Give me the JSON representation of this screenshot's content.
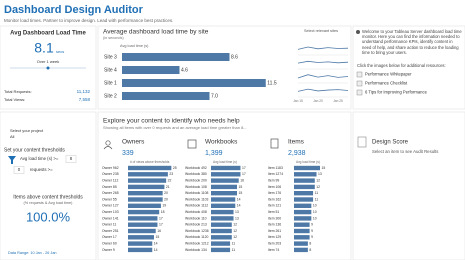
{
  "header": {
    "title": "Dashboard Design Auditor",
    "subtitle": "Monitor load times. Partner to improve design. Lead with performance best practices."
  },
  "kpi": {
    "title": "Avg Dashboard Load Time",
    "value": "8.1",
    "unit": "secs",
    "period": "Over 1 week",
    "requests_label": "Total Requests:",
    "requests": "11,132",
    "views_label": "Total Views:",
    "views": "7,558"
  },
  "welcome": {
    "text": "Welcome to your Tableau Server dashboard load time monitor. Here you can find the information needed to understand performance KPIs, identify content in need of help, and share action to reduce the loading time to bring your users.",
    "prompt": "Click the images below for additional resources:",
    "links": [
      "Performance Whitepaper",
      "Performance Checklist",
      "6 Tips for Improving Performance"
    ]
  },
  "filters": {
    "project_label": "Select your project",
    "project": "All",
    "thresholds_title": "Set your content thresholds",
    "load_label": "Avg load time (s) >=",
    "load_value": "8",
    "requests_label": "requests >=",
    "requests_value": "0",
    "items_title": "Items above content thresholds",
    "items_subtitle": "(% requests & Avg load time)",
    "items_value": "100.0%",
    "date_range": "Data Range: 10 Jan - 26 Jan"
  },
  "explore": {
    "title": "Explore your content to identify who needs help",
    "subtitle": "Showing all items with over 0 requests and an average load time greater than 8..."
  },
  "design_score": {
    "title": "Design Score",
    "hint": "Select an item to see Audit Results"
  },
  "chart_data": [
    {
      "type": "bar",
      "title": "Average dashboard load time by site",
      "subtitle": "(in seconds)",
      "axis_label": "Avg load time (s)",
      "categories": [
        "Site 3",
        "Site 4",
        "Site 1",
        "Site 2"
      ],
      "values": [
        8.6,
        4.6,
        11.5,
        7.0
      ],
      "value_labels": [
        "8.6",
        "4.6",
        "11.5",
        "7.0"
      ],
      "color": "#4e79a7",
      "xlim": [
        0,
        12
      ]
    },
    {
      "type": "line",
      "title": "Select relevant sites",
      "x": [
        "Jan 15",
        null,
        "Jan 20",
        null,
        "Jan 25",
        null
      ],
      "color": "#4e79a7",
      "series": [
        {
          "values": [
            8.2,
            9.0,
            8.4,
            8.8,
            8.5,
            8.6
          ],
          "ylim": [
            7,
            10
          ]
        },
        {
          "values": [
            4.3,
            4.9,
            4.5,
            4.7,
            4.4,
            4.6
          ],
          "ylim": [
            3,
            6
          ]
        },
        {
          "values": [
            11.0,
            12.1,
            11.3,
            11.8,
            11.2,
            11.5
          ],
          "ylim": [
            10,
            13
          ]
        },
        {
          "values": [
            6.8,
            7.3,
            6.9,
            7.1,
            7.2,
            7.0
          ],
          "ylim": [
            6,
            8
          ]
        }
      ]
    },
    {
      "type": "bar",
      "title": "Owners",
      "total": "339",
      "axis_label": "# of views above thresholds",
      "color": "#4e79a7",
      "xlim": [
        0,
        30
      ],
      "categories": [
        "Owner 962",
        "Owner 235",
        "Owner 112",
        "Owner 85",
        "Owner 265",
        "Owner 55",
        "Owner 127",
        "Owner 103",
        "Owner 141",
        "Owner 11",
        "Owner 251",
        "Owner 17",
        "Owner 60",
        "Owner 9"
      ],
      "values": [
        25,
        23,
        22,
        21,
        20,
        20,
        19,
        18,
        17,
        17,
        16,
        15,
        14,
        14
      ]
    },
    {
      "type": "bar",
      "title": "Workbooks",
      "total": "1,399",
      "axis_label": "Avg load time (s)",
      "color": "#4e79a7",
      "xlim": [
        0,
        30
      ],
      "categories": [
        "Workbook 492",
        "Workbook 380",
        "Workbook 200",
        "Workbook 108",
        "Workbook 1108",
        "Workbook 1103",
        "Workbook 1112",
        "Workbook 408",
        "Workbook 110",
        "Workbook 213",
        "Workbook 1236",
        "Workbook 1120",
        "Workbook 1212",
        "Workbook 134"
      ],
      "values": [
        17,
        17,
        16,
        15,
        15,
        14,
        14,
        13,
        13,
        12,
        12,
        12,
        11,
        11
      ]
    },
    {
      "type": "bar",
      "title": "Items",
      "total": "2,938",
      "axis_label": "Avg load time (s)",
      "color": "#4e79a7",
      "xlim": [
        0,
        30
      ],
      "categories": [
        "Item 1183",
        "Item 1274",
        "Item 99",
        "Item 106",
        "Item 176",
        "Item 162",
        "Item 121",
        "Item 51",
        "Item 300",
        "Item 136",
        "Item 261",
        "Item 129",
        "Item 203",
        "Item 74"
      ],
      "values": [
        15,
        13,
        12,
        12,
        11,
        11,
        10,
        10,
        10,
        9,
        9,
        9,
        8,
        8
      ]
    }
  ]
}
